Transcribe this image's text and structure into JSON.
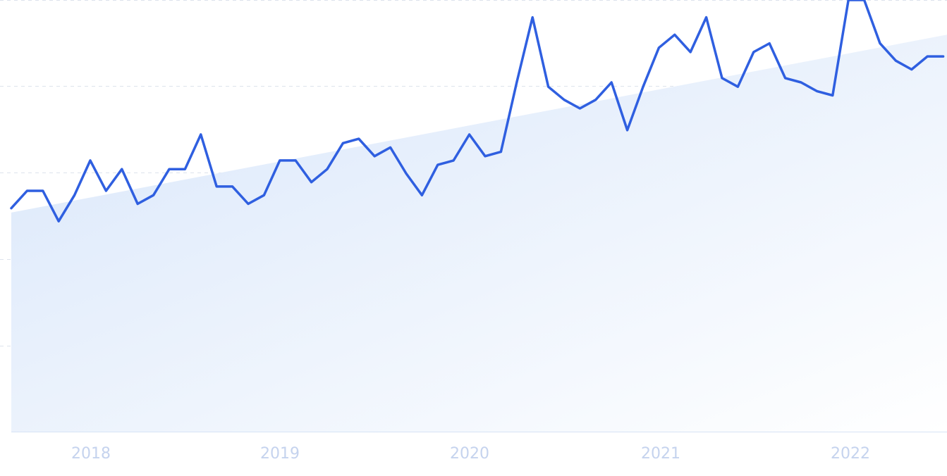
{
  "chart_data": {
    "type": "line",
    "title": "",
    "xlabel": "",
    "ylabel": "",
    "x_tick_labels": [
      "2018",
      "2019",
      "2020",
      "2021",
      "2022"
    ],
    "x_range": [
      "2017-08",
      "2022-09"
    ],
    "y_range": [
      0,
      100
    ],
    "grid": true,
    "y_tick_labels_visible": false,
    "has_trend_area": true,
    "series": [
      {
        "values": [
          52,
          56,
          56,
          49,
          55,
          63,
          56,
          61,
          53,
          55,
          61,
          61,
          69,
          57,
          57,
          53,
          55,
          63,
          63,
          58,
          61,
          67,
          68,
          64,
          66,
          60,
          55,
          62,
          63,
          69,
          64,
          65,
          81,
          96,
          80,
          77,
          75,
          77,
          81,
          70,
          80,
          89,
          92,
          88,
          96,
          82,
          80,
          88,
          90,
          82,
          81,
          79,
          78,
          100,
          100,
          90,
          86,
          84,
          87,
          87
        ]
      }
    ],
    "trend": {
      "start": 51,
      "end": 92
    },
    "colors": {
      "line": "#2f5fe0",
      "area_start": "#d8e6fa",
      "area_end": "#ffffff",
      "grid": "#dde3ec",
      "axis_label": "#c5d3ee",
      "baseline": "#d7e3f5"
    }
  }
}
